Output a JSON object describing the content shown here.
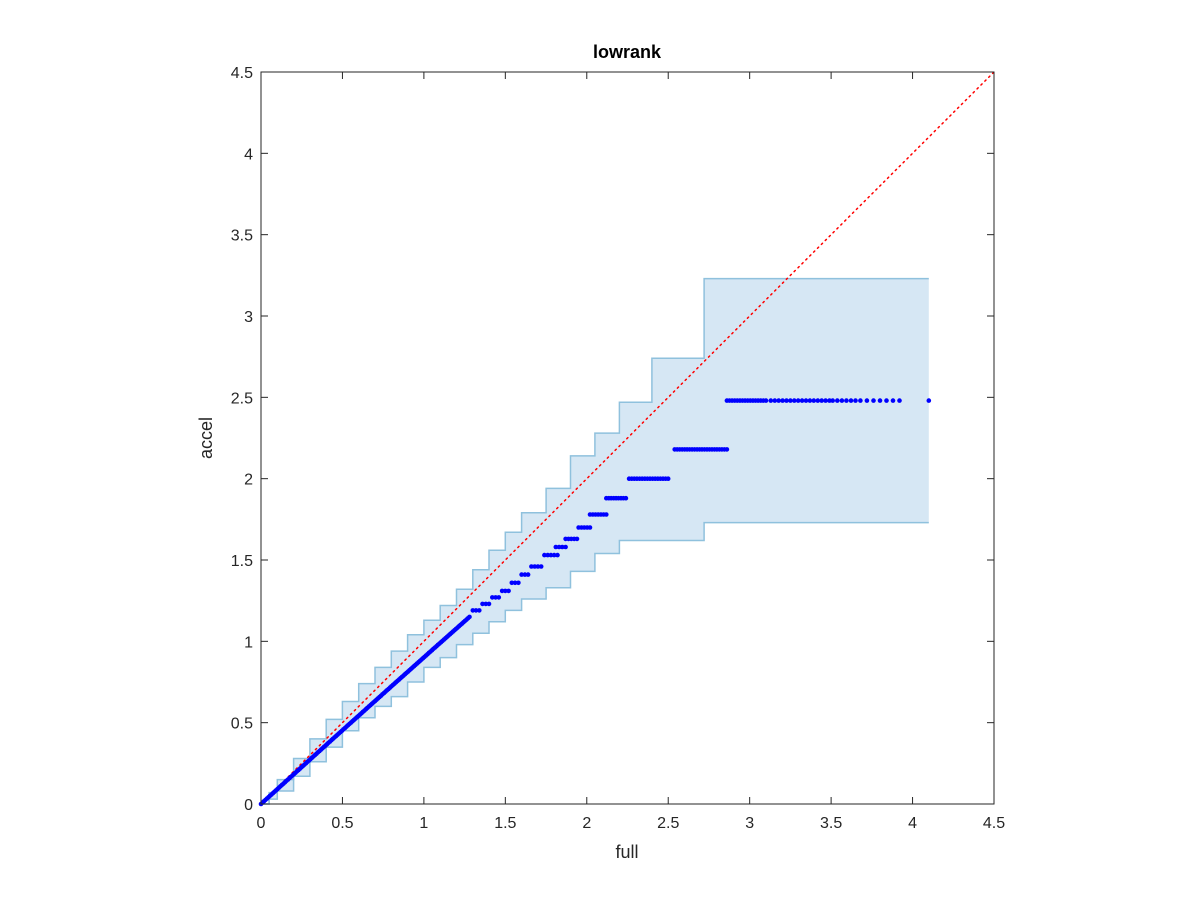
{
  "chart_data": {
    "type": "scatter",
    "title": "lowrank",
    "xlabel": "full",
    "ylabel": "accel",
    "xlim": [
      0,
      4.5
    ],
    "ylim": [
      0,
      4.5
    ],
    "xticks": [
      "0",
      "0.5",
      "1",
      "1.5",
      "2",
      "2.5",
      "3",
      "3.5",
      "4",
      "4.5"
    ],
    "yticks": [
      "0",
      "0.5",
      "1",
      "1.5",
      "2",
      "2.5",
      "3",
      "3.5",
      "4",
      "4.5"
    ],
    "grid": false,
    "colors": {
      "points": "#0000ff",
      "reference": "#ff0000",
      "band_fill": "#d6e7f4",
      "band_edge": "#8fc1dd",
      "axes": "#262626"
    },
    "reference_line": {
      "style": "dotted",
      "from": [
        0,
        0
      ],
      "to": [
        4.5,
        4.5
      ]
    },
    "band_upper": [
      [
        0.0,
        0.0
      ],
      [
        0.05,
        0.07
      ],
      [
        0.1,
        0.15
      ],
      [
        0.2,
        0.28
      ],
      [
        0.3,
        0.4
      ],
      [
        0.4,
        0.52
      ],
      [
        0.5,
        0.63
      ],
      [
        0.6,
        0.74
      ],
      [
        0.7,
        0.84
      ],
      [
        0.8,
        0.94
      ],
      [
        0.9,
        1.04
      ],
      [
        1.0,
        1.13
      ],
      [
        1.1,
        1.22
      ],
      [
        1.2,
        1.32
      ],
      [
        1.3,
        1.44
      ],
      [
        1.4,
        1.56
      ],
      [
        1.5,
        1.67
      ],
      [
        1.6,
        1.79
      ],
      [
        1.75,
        1.94
      ],
      [
        1.9,
        2.14
      ],
      [
        2.05,
        2.28
      ],
      [
        2.2,
        2.47
      ],
      [
        2.4,
        2.74
      ],
      [
        2.72,
        3.23
      ],
      [
        4.1,
        3.23
      ]
    ],
    "band_lower": [
      [
        0.0,
        0.0
      ],
      [
        0.05,
        0.03
      ],
      [
        0.1,
        0.08
      ],
      [
        0.2,
        0.17
      ],
      [
        0.3,
        0.26
      ],
      [
        0.4,
        0.35
      ],
      [
        0.5,
        0.45
      ],
      [
        0.6,
        0.53
      ],
      [
        0.7,
        0.6
      ],
      [
        0.8,
        0.66
      ],
      [
        0.9,
        0.75
      ],
      [
        1.0,
        0.84
      ],
      [
        1.1,
        0.9
      ],
      [
        1.2,
        0.98
      ],
      [
        1.3,
        1.05
      ],
      [
        1.4,
        1.12
      ],
      [
        1.5,
        1.19
      ],
      [
        1.6,
        1.26
      ],
      [
        1.75,
        1.33
      ],
      [
        1.9,
        1.43
      ],
      [
        2.05,
        1.54
      ],
      [
        2.2,
        1.62
      ],
      [
        2.4,
        1.62
      ],
      [
        2.72,
        1.73
      ],
      [
        4.1,
        1.73
      ]
    ],
    "series": [
      {
        "segments": [
          {
            "x_start": 0.0,
            "x_end": 1.28,
            "y_start": 0.0,
            "y_end": 1.15,
            "count": 140,
            "kind": "curve"
          },
          {
            "x_start": 1.3,
            "x_end": 1.34,
            "y": 1.19,
            "count": 3
          },
          {
            "x_start": 1.36,
            "x_end": 1.4,
            "y": 1.23,
            "count": 3
          },
          {
            "x_start": 1.42,
            "x_end": 1.46,
            "y": 1.27,
            "count": 3
          },
          {
            "x_start": 1.48,
            "x_end": 1.52,
            "y": 1.31,
            "count": 3
          },
          {
            "x_start": 1.54,
            "x_end": 1.58,
            "y": 1.36,
            "count": 3
          },
          {
            "x_start": 1.6,
            "x_end": 1.64,
            "y": 1.41,
            "count": 3
          },
          {
            "x_start": 1.66,
            "x_end": 1.72,
            "y": 1.46,
            "count": 4
          },
          {
            "x_start": 1.74,
            "x_end": 1.82,
            "y": 1.53,
            "count": 5
          },
          {
            "x_start": 1.81,
            "x_end": 1.87,
            "y": 1.58,
            "count": 4
          },
          {
            "x_start": 1.87,
            "x_end": 1.94,
            "y": 1.63,
            "count": 5
          },
          {
            "x_start": 1.95,
            "x_end": 2.02,
            "y": 1.7,
            "count": 5
          },
          {
            "x_start": 2.02,
            "x_end": 2.12,
            "y": 1.78,
            "count": 7
          },
          {
            "x_start": 2.12,
            "x_end": 2.24,
            "y": 1.88,
            "count": 9
          },
          {
            "x_start": 2.26,
            "x_end": 2.5,
            "y": 2.0,
            "count": 16
          },
          {
            "x_start": 2.54,
            "x_end": 2.86,
            "y": 2.18,
            "count": 22
          },
          {
            "x_start": 2.86,
            "x_end": 3.1,
            "y": 2.48,
            "count": 16
          },
          {
            "x_start": 3.13,
            "x_end": 3.49,
            "y": 2.48,
            "count": 16
          },
          {
            "x_start": 3.51,
            "x_end": 3.65,
            "y": 2.48,
            "count": 6
          },
          {
            "x_start": 3.68,
            "x_end": 3.76,
            "y": 2.48,
            "count": 3
          },
          {
            "x_start": 3.8,
            "x_end": 3.92,
            "y": 2.48,
            "count": 4
          },
          {
            "x_start": 4.1,
            "x_end": 4.1,
            "y": 2.48,
            "count": 1
          }
        ]
      }
    ]
  }
}
